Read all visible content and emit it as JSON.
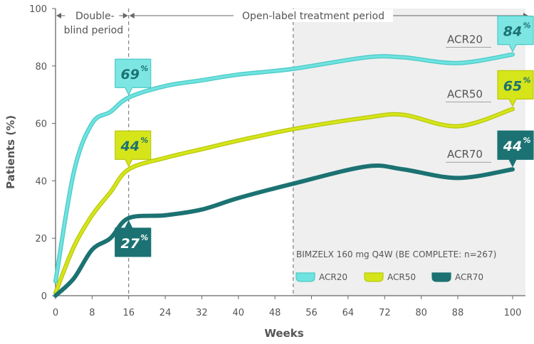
{
  "chart_data": {
    "type": "line",
    "xlabel": "Weeks",
    "ylabel": "Patients (%)",
    "xlim": [
      0,
      100
    ],
    "ylim": [
      0,
      100
    ],
    "x_ticks": [
      0,
      8,
      16,
      24,
      32,
      40,
      48,
      56,
      64,
      72,
      80,
      88,
      100
    ],
    "y_ticks": [
      0,
      20,
      40,
      60,
      80,
      100
    ],
    "periods": [
      {
        "label_lines": [
          "Double-",
          "blind period"
        ],
        "from": 0,
        "to": 16,
        "shaded": false
      },
      {
        "label_lines": [
          "Open-label treatment period"
        ],
        "from": 16,
        "to": 100,
        "shaded": false
      },
      {
        "label_lines": [],
        "from": 52,
        "to": 100,
        "shaded": true
      }
    ],
    "legend": {
      "title": "BIMZELX 160 mg Q4W (BE COMPLETE: n=267)",
      "placement": "bottom-right"
    },
    "series": [
      {
        "name": "ACR20",
        "color": "#6fe3e0",
        "stroke": "#4cc9c6",
        "x": [
          0,
          4,
          8,
          12,
          16,
          24,
          32,
          40,
          52,
          68,
          76,
          88,
          100
        ],
        "values": [
          5,
          43,
          60,
          64,
          69,
          73,
          75,
          77,
          79,
          83,
          83,
          81,
          84
        ]
      },
      {
        "name": "ACR50",
        "color": "#d5e51a",
        "stroke": "#b9c80e",
        "x": [
          0,
          4,
          8,
          12,
          16,
          24,
          32,
          40,
          52,
          68,
          76,
          88,
          100
        ],
        "values": [
          1,
          17,
          28,
          36,
          44,
          48,
          51,
          54,
          58,
          62,
          63,
          59,
          65
        ]
      },
      {
        "name": "ACR70",
        "color": "#1c7272",
        "stroke": "#1c7272",
        "x": [
          0,
          4,
          8,
          12,
          16,
          24,
          32,
          40,
          52,
          68,
          76,
          88,
          100
        ],
        "values": [
          0,
          6,
          16,
          20,
          27,
          28,
          30,
          34,
          39,
          45,
          44,
          41,
          44
        ]
      }
    ],
    "callouts": [
      {
        "series": "ACR20",
        "x": 16,
        "value_text": "69",
        "unit": "%",
        "bg": "#7de6e3",
        "border": "#4cc9c6",
        "text_color": "#1c7272",
        "pointer": "down"
      },
      {
        "series": "ACR50",
        "x": 16,
        "value_text": "44",
        "unit": "%",
        "bg": "#d5e51a",
        "border": "#b9c80e",
        "text_color": "#1c7272",
        "pointer": "down"
      },
      {
        "series": "ACR70",
        "x": 16,
        "value_text": "27",
        "unit": "%",
        "bg": "#1c7272",
        "border": "#1c7272",
        "text_color": "#ffffff",
        "pointer": "up"
      },
      {
        "series": "ACR20",
        "x": 100,
        "value_text": "84",
        "unit": "%",
        "bg": "#7de6e3",
        "border": "#4cc9c6",
        "text_color": "#1c7272",
        "pointer": "down"
      },
      {
        "series": "ACR50",
        "x": 100,
        "value_text": "65",
        "unit": "%",
        "bg": "#d5e51a",
        "border": "#b9c80e",
        "text_color": "#1c7272",
        "pointer": "down"
      },
      {
        "series": "ACR70",
        "x": 100,
        "value_text": "44",
        "unit": "%",
        "bg": "#1c7272",
        "border": "#1c7272",
        "text_color": "#ffffff",
        "pointer": "down"
      }
    ]
  }
}
